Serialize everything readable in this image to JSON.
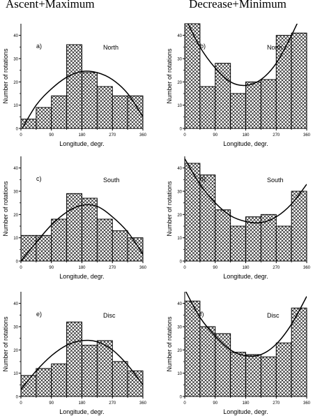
{
  "column_titles": [
    "Ascent+Maximum",
    "Decrease+Minimum"
  ],
  "chart_data": [
    {
      "type": "bar",
      "panel": "a)",
      "region": "North",
      "xlabel": "Longitude, degr.",
      "ylabel": "Number of rotations",
      "x_ticks": [
        0,
        90,
        180,
        270,
        360
      ],
      "xlim": [
        0,
        360
      ],
      "ylim": [
        0,
        45
      ],
      "y_ticks": [
        0,
        10,
        20,
        30,
        40
      ],
      "bin_width": 45,
      "bin_centers": [
        22.5,
        67.5,
        112.5,
        157.5,
        202.5,
        247.5,
        292.5,
        337.5
      ],
      "values": [
        4,
        9,
        14,
        36,
        24,
        18,
        14,
        14
      ],
      "fit_points": [
        [
          0,
          -1
        ],
        [
          45,
          10
        ],
        [
          90,
          17
        ],
        [
          135,
          22
        ],
        [
          180,
          24.5
        ],
        [
          225,
          24
        ],
        [
          270,
          21
        ],
        [
          315,
          15
        ],
        [
          360,
          5
        ]
      ]
    },
    {
      "type": "bar",
      "panel": "b)",
      "region": "North",
      "xlabel": "Longitude, degr.",
      "ylabel": "Number of rotations",
      "x_ticks": [
        0,
        90,
        180,
        270,
        360
      ],
      "xlim": [
        0,
        360
      ],
      "ylim": [
        0,
        45
      ],
      "y_ticks": [
        0,
        10,
        20,
        30,
        40
      ],
      "bin_width": 45,
      "bin_centers": [
        22.5,
        67.5,
        112.5,
        157.5,
        202.5,
        247.5,
        292.5,
        337.5
      ],
      "values": [
        46,
        18,
        28,
        15,
        20,
        21,
        40,
        41
      ],
      "fit_points": [
        [
          0,
          48
        ],
        [
          45,
          35
        ],
        [
          90,
          26
        ],
        [
          135,
          20
        ],
        [
          180,
          18.5
        ],
        [
          225,
          21
        ],
        [
          270,
          28
        ],
        [
          315,
          40
        ],
        [
          360,
          54
        ]
      ]
    },
    {
      "type": "bar",
      "panel": "c)",
      "region": "South",
      "xlabel": "Longitude, degr.",
      "ylabel": "Number of rotations",
      "x_ticks": [
        0,
        90,
        180,
        270,
        360
      ],
      "xlim": [
        0,
        360
      ],
      "ylim": [
        0,
        45
      ],
      "y_ticks": [
        0,
        10,
        20,
        30,
        40
      ],
      "bin_width": 45,
      "bin_centers": [
        22.5,
        67.5,
        112.5,
        157.5,
        202.5,
        247.5,
        292.5,
        337.5
      ],
      "values": [
        11,
        11,
        18,
        29,
        27,
        18,
        13,
        10
      ],
      "fit_points": [
        [
          0,
          0
        ],
        [
          45,
          8
        ],
        [
          90,
          15.5
        ],
        [
          135,
          21
        ],
        [
          180,
          24
        ],
        [
          225,
          23.5
        ],
        [
          270,
          19
        ],
        [
          315,
          12.5
        ],
        [
          360,
          3
        ]
      ]
    },
    {
      "type": "bar",
      "panel": "d)",
      "region": "South",
      "xlabel": "Longitude, degr.",
      "ylabel": "Number of rotations",
      "x_ticks": [
        0,
        90,
        180,
        270,
        360
      ],
      "xlim": [
        0,
        360
      ],
      "ylim": [
        0,
        45
      ],
      "y_ticks": [
        0,
        10,
        20,
        30,
        40
      ],
      "bin_width": 45,
      "bin_centers": [
        22.5,
        67.5,
        112.5,
        157.5,
        202.5,
        247.5,
        292.5,
        337.5
      ],
      "values": [
        42,
        37,
        22,
        15,
        19,
        20,
        15,
        30
      ],
      "fit_points": [
        [
          0,
          44
        ],
        [
          45,
          33
        ],
        [
          90,
          25
        ],
        [
          135,
          19.5
        ],
        [
          180,
          17
        ],
        [
          225,
          16.5
        ],
        [
          270,
          19
        ],
        [
          315,
          24.5
        ],
        [
          360,
          33
        ]
      ]
    },
    {
      "type": "bar",
      "panel": "e)",
      "region": "Disc",
      "xlabel": "Longitude, degr.",
      "ylabel": "Number of rotations",
      "x_ticks": [
        0,
        90,
        180,
        270,
        360
      ],
      "xlim": [
        0,
        360
      ],
      "ylim": [
        0,
        45
      ],
      "y_ticks": [
        0,
        10,
        20,
        30,
        40
      ],
      "bin_width": 45,
      "bin_centers": [
        22.5,
        67.5,
        112.5,
        157.5,
        202.5,
        247.5,
        292.5,
        337.5
      ],
      "values": [
        9,
        12,
        14,
        32,
        22,
        24,
        15,
        11
      ],
      "fit_points": [
        [
          0,
          3
        ],
        [
          45,
          11
        ],
        [
          90,
          17.5
        ],
        [
          135,
          22
        ],
        [
          180,
          24
        ],
        [
          225,
          23.5
        ],
        [
          270,
          20
        ],
        [
          315,
          13.5
        ],
        [
          360,
          5
        ]
      ]
    },
    {
      "type": "bar",
      "panel": "f)",
      "region": "Disc",
      "xlabel": "Longitude, degr.",
      "ylabel": "Number of rotations",
      "x_ticks": [
        0,
        90,
        180,
        270,
        360
      ],
      "xlim": [
        0,
        360
      ],
      "ylim": [
        0,
        45
      ],
      "y_ticks": [
        0,
        10,
        20,
        30,
        40
      ],
      "bin_width": 45,
      "bin_centers": [
        22.5,
        67.5,
        112.5,
        157.5,
        202.5,
        247.5,
        292.5,
        337.5
      ],
      "values": [
        41,
        30,
        27,
        19,
        18,
        17,
        23,
        38
      ],
      "fit_points": [
        [
          0,
          46
        ],
        [
          45,
          34
        ],
        [
          90,
          26
        ],
        [
          135,
          20
        ],
        [
          180,
          17.5
        ],
        [
          225,
          18
        ],
        [
          270,
          22.5
        ],
        [
          315,
          31
        ],
        [
          360,
          43
        ]
      ]
    }
  ]
}
